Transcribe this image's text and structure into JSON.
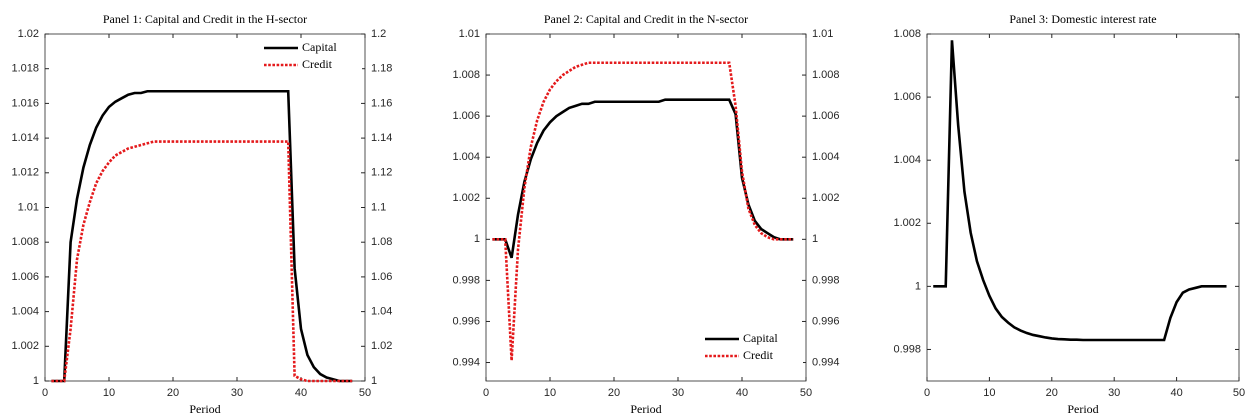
{
  "chart_data": [
    {
      "type": "line",
      "title": "Panel 1: Capital and Credit in the H-sector",
      "xlabel": "Period",
      "x": [
        1,
        2,
        3,
        4,
        5,
        6,
        7,
        8,
        9,
        10,
        11,
        12,
        13,
        14,
        15,
        16,
        17,
        18,
        19,
        20,
        21,
        22,
        23,
        24,
        25,
        26,
        27,
        28,
        29,
        30,
        31,
        32,
        33,
        34,
        35,
        36,
        37,
        38,
        39,
        40,
        41,
        42,
        43,
        44,
        45,
        46,
        47,
        48
      ],
      "xlim": [
        0,
        50
      ],
      "xticks": [
        0,
        10,
        20,
        30,
        40,
        50
      ],
      "ylim": [
        1,
        1.02
      ],
      "yticks": [
        1,
        1.002,
        1.004,
        1.006,
        1.008,
        1.01,
        1.012,
        1.014,
        1.016,
        1.018,
        1.02
      ],
      "y2lim": [
        1,
        1.2
      ],
      "y2ticks": [
        1,
        1.02,
        1.04,
        1.06,
        1.08,
        1.1,
        1.12,
        1.14,
        1.16,
        1.18,
        1.2
      ],
      "legend": "upper right",
      "series": [
        {
          "name": "Capital",
          "color": "#000000",
          "linestyle": "solid",
          "values": [
            1,
            1,
            1,
            1.008,
            1.0105,
            1.0123,
            1.0136,
            1.0146,
            1.0153,
            1.0158,
            1.0161,
            1.0163,
            1.0165,
            1.0166,
            1.0166,
            1.0167,
            1.0167,
            1.0167,
            1.0167,
            1.0167,
            1.0167,
            1.0167,
            1.0167,
            1.0167,
            1.0167,
            1.0167,
            1.0167,
            1.0167,
            1.0167,
            1.0167,
            1.0167,
            1.0167,
            1.0167,
            1.0167,
            1.0167,
            1.0167,
            1.0167,
            1.0167,
            1.0065,
            1.003,
            1.0015,
            1.0008,
            1.0004,
            1.0002,
            1.0001,
            1,
            1,
            1
          ]
        },
        {
          "name": "Credit",
          "color": "#e41a1c",
          "linestyle": "dotted",
          "axis": "y2",
          "values": [
            1,
            1,
            1,
            1.03,
            1.07,
            1.09,
            1.103,
            1.114,
            1.121,
            1.126,
            1.13,
            1.132,
            1.134,
            1.135,
            1.136,
            1.137,
            1.138,
            1.138,
            1.138,
            1.138,
            1.138,
            1.138,
            1.138,
            1.138,
            1.138,
            1.138,
            1.138,
            1.138,
            1.138,
            1.138,
            1.138,
            1.138,
            1.138,
            1.138,
            1.138,
            1.138,
            1.138,
            1.138,
            1.003,
            1.001,
            1,
            1,
            1,
            1,
            1,
            1,
            1,
            1
          ]
        }
      ]
    },
    {
      "type": "line",
      "title": "Panel 2: Capital and Credit in the N-sector",
      "xlabel": "Period",
      "x": [
        1,
        2,
        3,
        4,
        5,
        6,
        7,
        8,
        9,
        10,
        11,
        12,
        13,
        14,
        15,
        16,
        17,
        18,
        19,
        20,
        21,
        22,
        23,
        24,
        25,
        26,
        27,
        28,
        29,
        30,
        31,
        32,
        33,
        34,
        35,
        36,
        37,
        38,
        39,
        40,
        41,
        42,
        43,
        44,
        45,
        46,
        47,
        48
      ],
      "xlim": [
        0,
        50
      ],
      "xticks": [
        0,
        10,
        20,
        30,
        40,
        50
      ],
      "ylim": [
        0.9931,
        1.01
      ],
      "yticks": [
        0.994,
        0.996,
        0.998,
        1,
        1.002,
        1.004,
        1.006,
        1.008,
        1.01
      ],
      "y2lim": [
        0.9931,
        1.01
      ],
      "y2ticks": [
        0.994,
        0.996,
        0.998,
        1,
        1.002,
        1.004,
        1.006,
        1.008,
        1.01
      ],
      "legend": "lower right",
      "series": [
        {
          "name": "Capital",
          "color": "#000000",
          "linestyle": "solid",
          "values": [
            1,
            1,
            1,
            0.9991,
            1.0012,
            1.0028,
            1.0039,
            1.0047,
            1.0053,
            1.0057,
            1.006,
            1.0062,
            1.0064,
            1.0065,
            1.0066,
            1.0066,
            1.0067,
            1.0067,
            1.0067,
            1.0067,
            1.0067,
            1.0067,
            1.0067,
            1.0067,
            1.0067,
            1.0067,
            1.0067,
            1.0068,
            1.0068,
            1.0068,
            1.0068,
            1.0068,
            1.0068,
            1.0068,
            1.0068,
            1.0068,
            1.0068,
            1.0068,
            1.0061,
            1.003,
            1.0017,
            1.0009,
            1.0005,
            1.0003,
            1.0001,
            1,
            1,
            1
          ]
        },
        {
          "name": "Credit",
          "color": "#e41a1c",
          "linestyle": "dotted",
          "axis": "y2",
          "values": [
            1,
            1,
            1,
            0.9941,
            0.9995,
            1.0025,
            1.0045,
            1.0058,
            1.0067,
            1.0073,
            1.0077,
            1.008,
            1.0082,
            1.0084,
            1.0085,
            1.0086,
            1.0086,
            1.0086,
            1.0086,
            1.0086,
            1.0086,
            1.0086,
            1.0086,
            1.0086,
            1.0086,
            1.0086,
            1.0086,
            1.0086,
            1.0086,
            1.0086,
            1.0086,
            1.0086,
            1.0086,
            1.0086,
            1.0086,
            1.0086,
            1.0086,
            1.0086,
            1.0065,
            1.0033,
            1.0015,
            1.0007,
            1.0003,
            1.0001,
            1,
            1,
            1,
            1
          ]
        }
      ]
    },
    {
      "type": "line",
      "title": "Panel 3: Domestic interest rate",
      "xlabel": "Period",
      "x": [
        1,
        2,
        3,
        4,
        5,
        6,
        7,
        8,
        9,
        10,
        11,
        12,
        13,
        14,
        15,
        16,
        17,
        18,
        19,
        20,
        21,
        22,
        23,
        24,
        25,
        26,
        27,
        28,
        29,
        30,
        31,
        32,
        33,
        34,
        35,
        36,
        37,
        38,
        39,
        40,
        41,
        42,
        43,
        44,
        45,
        46,
        47,
        48
      ],
      "xlim": [
        0,
        50
      ],
      "xticks": [
        0,
        10,
        20,
        30,
        40,
        50
      ],
      "ylim": [
        0.997,
        1.008
      ],
      "yticks": [
        0.998,
        1,
        1.002,
        1.004,
        1.006,
        1.008
      ],
      "series": [
        {
          "color": "#000000",
          "linestyle": "solid",
          "values": [
            1,
            1,
            1,
            1.0078,
            1.0051,
            1.003,
            1.0017,
            1.0008,
            1.0002,
            0.9997,
            0.9993,
            0.99903,
            0.99885,
            0.9987,
            0.9986,
            0.99852,
            0.99846,
            0.99842,
            0.99838,
            0.99835,
            0.99833,
            0.99832,
            0.99831,
            0.99831,
            0.9983,
            0.9983,
            0.9983,
            0.9983,
            0.9983,
            0.9983,
            0.9983,
            0.9983,
            0.9983,
            0.9983,
            0.9983,
            0.9983,
            0.9983,
            0.9983,
            0.999,
            0.9995,
            0.9998,
            0.9999,
            0.99995,
            1,
            1,
            1,
            1,
            1
          ]
        }
      ]
    }
  ]
}
